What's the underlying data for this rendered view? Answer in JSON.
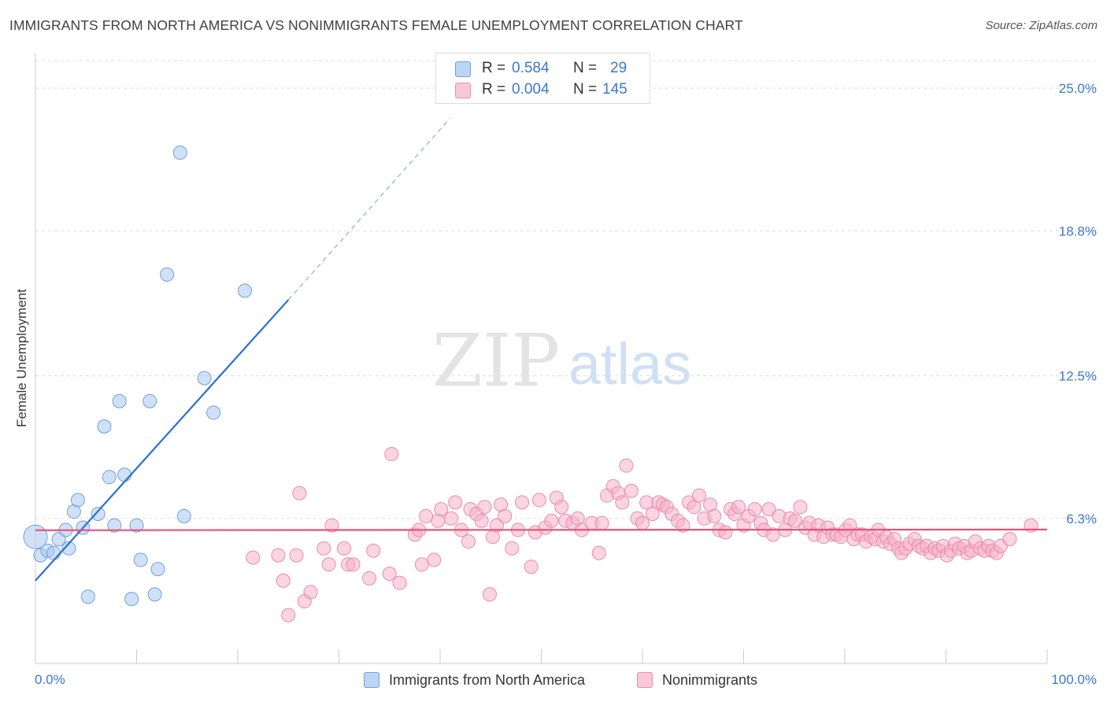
{
  "title": "IMMIGRANTS FROM NORTH AMERICA VS NONIMMIGRANTS FEMALE UNEMPLOYMENT CORRELATION CHART",
  "source": "Source: ZipAtlas.com",
  "watermark": {
    "zip": "ZIP",
    "atlas": "atlas"
  },
  "legend_stats": [
    {
      "r_label": "R =",
      "r_value": "0.584",
      "n_label": "N =",
      "n_value": "29",
      "color": "#a9c8f0"
    },
    {
      "r_label": "R =",
      "r_value": "0.004",
      "n_label": "N =",
      "n_value": "145",
      "color": "#f6b3c9"
    }
  ],
  "chart_data": {
    "type": "scatter",
    "title": "IMMIGRANTS FROM NORTH AMERICA VS NONIMMIGRANTS FEMALE UNEMPLOYMENT CORRELATION CHART",
    "xlabel": "",
    "ylabel": "Female Unemployment",
    "xlim": [
      0,
      100
    ],
    "ylim": [
      0,
      26.2
    ],
    "x_tick_labels": [
      "0.0%",
      "100.0%"
    ],
    "y_ticks": [
      6.3,
      12.5,
      18.8,
      25.0
    ],
    "y_tick_labels": [
      "6.3%",
      "12.5%",
      "18.8%",
      "25.0%"
    ],
    "grid": true,
    "legend_position": "bottom-center",
    "series": [
      {
        "name": "Immigrants from North America",
        "color": "#a9c8f0",
        "stroke": "#6f9fdc",
        "line_color": "#2a6fd6",
        "trend": {
          "x0": 0,
          "y0": 3.6,
          "x1": 25,
          "y1": 15.8,
          "dashed_to_x": 41,
          "dashed_to_y": 23.7
        },
        "points": [
          [
            0,
            5.5
          ],
          [
            0.5,
            4.7
          ],
          [
            1.2,
            4.9
          ],
          [
            1.8,
            4.8
          ],
          [
            2.3,
            5.4
          ],
          [
            3.0,
            5.8
          ],
          [
            3.3,
            5.0
          ],
          [
            3.8,
            6.6
          ],
          [
            4.2,
            7.1
          ],
          [
            4.7,
            5.9
          ],
          [
            5.2,
            2.9
          ],
          [
            6.2,
            6.5
          ],
          [
            6.8,
            10.3
          ],
          [
            7.3,
            8.1
          ],
          [
            7.8,
            6.0
          ],
          [
            8.3,
            11.4
          ],
          [
            8.8,
            8.2
          ],
          [
            9.5,
            2.8
          ],
          [
            10.0,
            6.0
          ],
          [
            10.4,
            4.5
          ],
          [
            11.3,
            11.4
          ],
          [
            11.8,
            3.0
          ],
          [
            12.1,
            4.1
          ],
          [
            13.0,
            16.9
          ],
          [
            14.3,
            22.2
          ],
          [
            14.7,
            6.4
          ],
          [
            16.7,
            12.4
          ],
          [
            17.6,
            10.9
          ],
          [
            20.7,
            16.2
          ]
        ]
      },
      {
        "name": "Nonimmigrants",
        "color": "#f6b3c9",
        "stroke": "#e98aab",
        "line_color": "#e8517c",
        "trend": {
          "x0": 0,
          "y0": 5.79,
          "x1": 100,
          "y1": 5.82
        },
        "points": [
          [
            21.5,
            4.6
          ],
          [
            24.0,
            4.7
          ],
          [
            24.5,
            3.6
          ],
          [
            25.0,
            2.1
          ],
          [
            25.8,
            4.7
          ],
          [
            26.1,
            7.4
          ],
          [
            26.6,
            2.7
          ],
          [
            27.2,
            3.1
          ],
          [
            28.5,
            5.0
          ],
          [
            29.0,
            4.3
          ],
          [
            29.3,
            6.0
          ],
          [
            30.5,
            5.0
          ],
          [
            30.9,
            4.3
          ],
          [
            31.4,
            4.3
          ],
          [
            33.0,
            3.7
          ],
          [
            33.4,
            4.9
          ],
          [
            35.0,
            3.9
          ],
          [
            35.2,
            9.1
          ],
          [
            36.0,
            3.5
          ],
          [
            37.5,
            5.6
          ],
          [
            37.9,
            5.8
          ],
          [
            38.2,
            4.3
          ],
          [
            38.6,
            6.4
          ],
          [
            39.4,
            4.5
          ],
          [
            39.8,
            6.2
          ],
          [
            40.1,
            6.7
          ],
          [
            41.1,
            6.3
          ],
          [
            41.5,
            7.0
          ],
          [
            42.1,
            5.8
          ],
          [
            42.8,
            5.3
          ],
          [
            43.0,
            6.7
          ],
          [
            43.6,
            6.5
          ],
          [
            44.1,
            6.2
          ],
          [
            44.4,
            6.8
          ],
          [
            44.9,
            3.0
          ],
          [
            45.2,
            5.5
          ],
          [
            45.6,
            6.0
          ],
          [
            46.0,
            6.9
          ],
          [
            46.4,
            6.4
          ],
          [
            47.1,
            5.0
          ],
          [
            47.7,
            5.8
          ],
          [
            48.1,
            7.0
          ],
          [
            49.0,
            4.2
          ],
          [
            49.4,
            5.7
          ],
          [
            49.8,
            7.1
          ],
          [
            50.4,
            5.9
          ],
          [
            51.0,
            6.2
          ],
          [
            51.5,
            7.2
          ],
          [
            52.0,
            6.8
          ],
          [
            52.4,
            6.2
          ],
          [
            53.1,
            6.1
          ],
          [
            53.6,
            6.3
          ],
          [
            54.0,
            5.8
          ],
          [
            55.0,
            6.1
          ],
          [
            55.7,
            4.8
          ],
          [
            56.0,
            6.1
          ],
          [
            56.5,
            7.3
          ],
          [
            57.1,
            7.7
          ],
          [
            57.6,
            7.4
          ],
          [
            58.0,
            7.0
          ],
          [
            58.4,
            8.6
          ],
          [
            58.9,
            7.5
          ],
          [
            59.5,
            6.3
          ],
          [
            60.0,
            6.1
          ],
          [
            60.4,
            7.0
          ],
          [
            61.0,
            6.5
          ],
          [
            61.6,
            7.0
          ],
          [
            62.0,
            6.9
          ],
          [
            62.4,
            6.8
          ],
          [
            62.9,
            6.5
          ],
          [
            63.5,
            6.2
          ],
          [
            64.0,
            6.0
          ],
          [
            64.6,
            7.0
          ],
          [
            65.1,
            6.8
          ],
          [
            65.6,
            7.3
          ],
          [
            66.1,
            6.3
          ],
          [
            66.7,
            6.9
          ],
          [
            67.1,
            6.4
          ],
          [
            67.6,
            5.8
          ],
          [
            68.2,
            5.7
          ],
          [
            68.7,
            6.7
          ],
          [
            69.1,
            6.5
          ],
          [
            69.5,
            6.8
          ],
          [
            70.0,
            6.0
          ],
          [
            70.5,
            6.4
          ],
          [
            71.1,
            6.7
          ],
          [
            71.7,
            6.1
          ],
          [
            72.0,
            5.8
          ],
          [
            72.5,
            6.7
          ],
          [
            72.9,
            5.6
          ],
          [
            73.5,
            6.4
          ],
          [
            74.1,
            5.8
          ],
          [
            74.6,
            6.3
          ],
          [
            75.1,
            6.2
          ],
          [
            75.6,
            6.8
          ],
          [
            76.1,
            5.9
          ],
          [
            76.5,
            6.1
          ],
          [
            77.0,
            5.6
          ],
          [
            77.4,
            6.0
          ],
          [
            77.9,
            5.5
          ],
          [
            78.3,
            5.9
          ],
          [
            78.8,
            5.6
          ],
          [
            79.2,
            5.6
          ],
          [
            79.6,
            5.5
          ],
          [
            80.1,
            5.8
          ],
          [
            80.5,
            6.0
          ],
          [
            80.9,
            5.4
          ],
          [
            81.3,
            5.6
          ],
          [
            81.7,
            5.6
          ],
          [
            82.1,
            5.3
          ],
          [
            82.6,
            5.5
          ],
          [
            83.0,
            5.4
          ],
          [
            83.3,
            5.8
          ],
          [
            83.8,
            5.3
          ],
          [
            84.1,
            5.5
          ],
          [
            84.5,
            5.2
          ],
          [
            84.9,
            5.4
          ],
          [
            85.3,
            5.0
          ],
          [
            85.6,
            4.8
          ],
          [
            86.0,
            5.0
          ],
          [
            86.4,
            5.2
          ],
          [
            86.9,
            5.4
          ],
          [
            87.3,
            5.1
          ],
          [
            87.7,
            5.0
          ],
          [
            88.1,
            5.1
          ],
          [
            88.5,
            4.8
          ],
          [
            88.9,
            5.0
          ],
          [
            89.3,
            4.9
          ],
          [
            89.7,
            5.1
          ],
          [
            90.1,
            4.7
          ],
          [
            90.5,
            4.9
          ],
          [
            90.9,
            5.2
          ],
          [
            91.3,
            5.0
          ],
          [
            91.8,
            5.1
          ],
          [
            92.1,
            4.8
          ],
          [
            92.5,
            4.9
          ],
          [
            92.9,
            5.3
          ],
          [
            93.4,
            5.0
          ],
          [
            93.8,
            4.9
          ],
          [
            94.2,
            5.1
          ],
          [
            94.6,
            4.9
          ],
          [
            95.0,
            4.8
          ],
          [
            95.4,
            5.1
          ],
          [
            96.3,
            5.4
          ],
          [
            98.4,
            6.0
          ]
        ]
      }
    ]
  },
  "legend": {
    "items": [
      {
        "label": "Immigrants from North America",
        "color": "#a9c8f0",
        "border": "#6f9fdc"
      },
      {
        "label": "Nonimmigrants",
        "color": "#f6b3c9",
        "border": "#e98aab"
      }
    ]
  }
}
